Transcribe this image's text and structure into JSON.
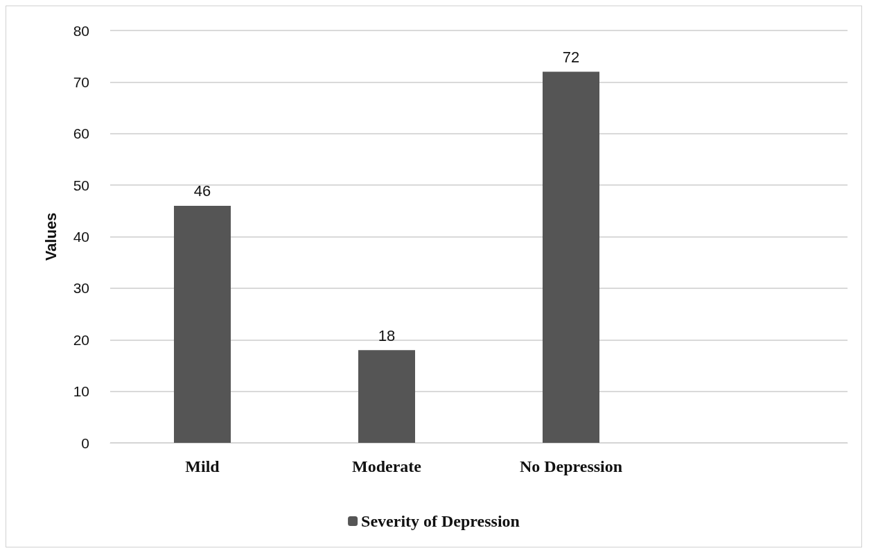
{
  "chart_data": {
    "type": "bar",
    "ylabel": "Values",
    "categories": [
      "Mild",
      "Moderate",
      "No Depression",
      null
    ],
    "series": [
      {
        "name": "Severity of Depression",
        "color": "#555555",
        "values": [
          46,
          18,
          72,
          null
        ]
      }
    ],
    "ylim": [
      0,
      80
    ],
    "yticks": [
      0,
      10,
      20,
      30,
      40,
      50,
      60,
      70,
      80
    ],
    "grid": "y",
    "legend": "bottom",
    "data_labels": true
  }
}
